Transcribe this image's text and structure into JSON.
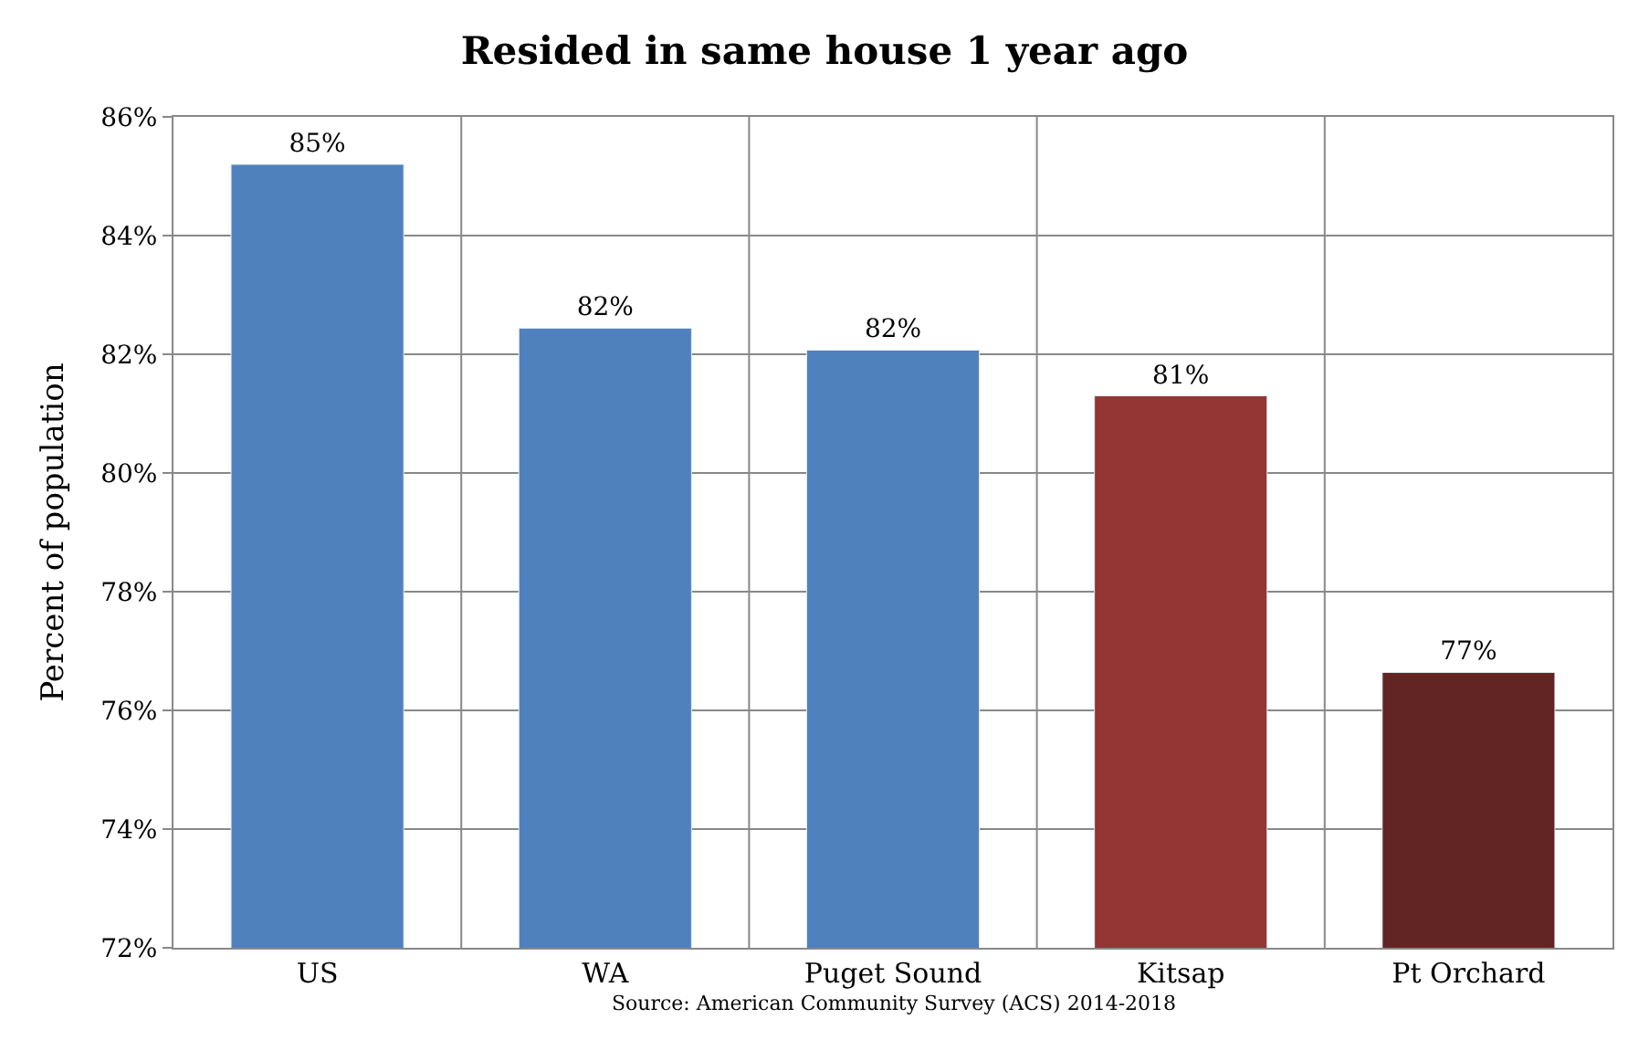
{
  "chart_data": {
    "type": "bar",
    "title": "Resided in same house 1 year ago",
    "ylabel": "Percent of population",
    "categories": [
      "US",
      "WA",
      "Puget Sound",
      "Kitsap",
      "Pt Orchard"
    ],
    "values": [
      85.2,
      82.44,
      82.07,
      81.3,
      76.64
    ],
    "colors": [
      "#4f81bd",
      "#4f81bd",
      "#4f81bd",
      "#943634",
      "#632523"
    ],
    "value_labels": [
      "85%",
      "82%",
      "82%",
      "81%",
      "77%"
    ],
    "ylim": [
      72,
      86
    ],
    "yticks": [
      {
        "value": 72,
        "label": "72%"
      },
      {
        "value": 74,
        "label": "74%"
      },
      {
        "value": 76,
        "label": "76%"
      },
      {
        "value": 78,
        "label": "78%"
      },
      {
        "value": 80,
        "label": "80%"
      },
      {
        "value": 82,
        "label": "82%"
      },
      {
        "value": 84,
        "label": "84%"
      },
      {
        "value": 86,
        "label": "86%"
      }
    ],
    "grid": true,
    "annotations": [
      "Source: American Community Survey (ACS) 2014-2018"
    ]
  }
}
